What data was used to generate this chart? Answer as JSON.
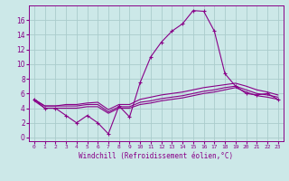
{
  "title": "",
  "xlabel": "Windchill (Refroidissement éolien,°C)",
  "background_color": "#cce8e8",
  "grid_color": "#aacccc",
  "line_color": "#880088",
  "x_labels": [
    "0",
    "1",
    "2",
    "3",
    "4",
    "5",
    "6",
    "7",
    "8",
    "9",
    "10",
    "11",
    "12",
    "13",
    "14",
    "15",
    "16",
    "17",
    "18",
    "19",
    "20",
    "21",
    "22",
    "23"
  ],
  "xlim": [
    -0.5,
    23.5
  ],
  "ylim": [
    -0.5,
    18.0
  ],
  "yticks": [
    0,
    2,
    4,
    6,
    8,
    10,
    12,
    14,
    16
  ],
  "series1": [
    5.2,
    4.0,
    4.0,
    3.0,
    2.0,
    3.0,
    2.0,
    0.5,
    4.3,
    2.8,
    7.5,
    11.0,
    13.0,
    14.5,
    15.5,
    17.3,
    17.2,
    14.5,
    8.7,
    7.0,
    6.0,
    5.8,
    6.0,
    5.2
  ],
  "series2": [
    5.2,
    4.3,
    4.3,
    4.5,
    4.5,
    4.7,
    4.8,
    3.8,
    4.5,
    4.5,
    5.2,
    5.5,
    5.8,
    6.0,
    6.2,
    6.5,
    6.8,
    7.0,
    7.2,
    7.4,
    7.0,
    6.5,
    6.2,
    5.8
  ],
  "series3": [
    5.2,
    4.3,
    4.3,
    4.3,
    4.3,
    4.5,
    4.5,
    3.5,
    4.2,
    4.2,
    4.8,
    5.0,
    5.3,
    5.5,
    5.7,
    6.0,
    6.3,
    6.5,
    6.8,
    7.0,
    6.5,
    6.0,
    5.8,
    5.5
  ],
  "series4": [
    5.0,
    4.0,
    4.0,
    4.0,
    4.0,
    4.2,
    4.2,
    3.3,
    4.0,
    4.0,
    4.5,
    4.7,
    5.0,
    5.2,
    5.4,
    5.7,
    6.0,
    6.2,
    6.5,
    6.8,
    6.2,
    5.7,
    5.5,
    5.2
  ]
}
